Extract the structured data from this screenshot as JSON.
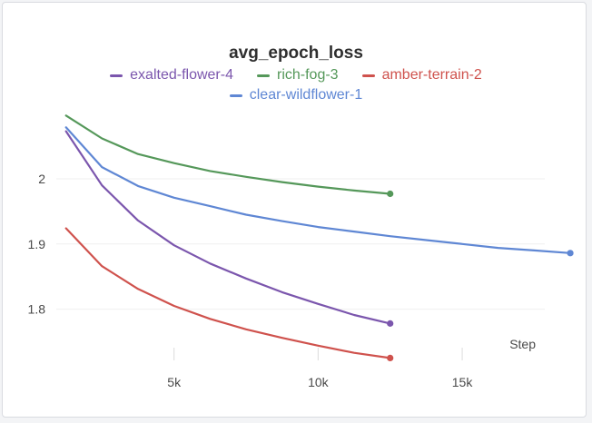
{
  "chart_data": {
    "type": "line",
    "title": "avg_epoch_loss",
    "xlabel": "Step",
    "ylabel": "",
    "xlim": [
      0,
      19000
    ],
    "ylim": [
      1.72,
      2.11
    ],
    "x_ticks": [
      5000,
      10000,
      15000
    ],
    "x_tick_labels": [
      "5k",
      "10k",
      "15k"
    ],
    "y_ticks": [
      1.8,
      1.9,
      2.0
    ],
    "y_tick_labels": [
      "1.8",
      "1.9",
      "2"
    ],
    "grid": true,
    "legend_position": "top-center",
    "series": [
      {
        "name": "exalted-flower-4",
        "color": "#7b56ad",
        "x": [
          1250,
          2500,
          3750,
          5000,
          6250,
          7500,
          8750,
          10000,
          11250,
          12500
        ],
        "y": [
          2.073,
          1.99,
          1.936,
          1.898,
          1.87,
          1.847,
          1.826,
          1.808,
          1.791,
          1.778
        ]
      },
      {
        "name": "rich-fog-3",
        "color": "#55985a",
        "x": [
          1250,
          2500,
          3750,
          5000,
          6250,
          7500,
          8750,
          10000,
          11250,
          12500
        ],
        "y": [
          2.097,
          2.062,
          2.038,
          2.024,
          2.012,
          2.003,
          1.995,
          1.988,
          1.982,
          1.977
        ]
      },
      {
        "name": "amber-terrain-2",
        "color": "#cf524d",
        "x": [
          1250,
          2500,
          3750,
          5000,
          6250,
          7500,
          8750,
          10000,
          11250,
          12500
        ],
        "y": [
          1.924,
          1.866,
          1.831,
          1.805,
          1.785,
          1.769,
          1.756,
          1.744,
          1.733,
          1.725
        ]
      },
      {
        "name": "clear-wildflower-1",
        "color": "#5f87d4",
        "x": [
          1250,
          2500,
          3750,
          5000,
          6250,
          7500,
          8750,
          10000,
          11250,
          12500,
          13750,
          15000,
          16250,
          17500,
          18750
        ],
        "y": [
          2.079,
          2.018,
          1.989,
          1.971,
          1.958,
          1.945,
          1.935,
          1.926,
          1.919,
          1.912,
          1.906,
          1.9,
          1.894,
          1.89,
          1.886
        ]
      }
    ]
  }
}
